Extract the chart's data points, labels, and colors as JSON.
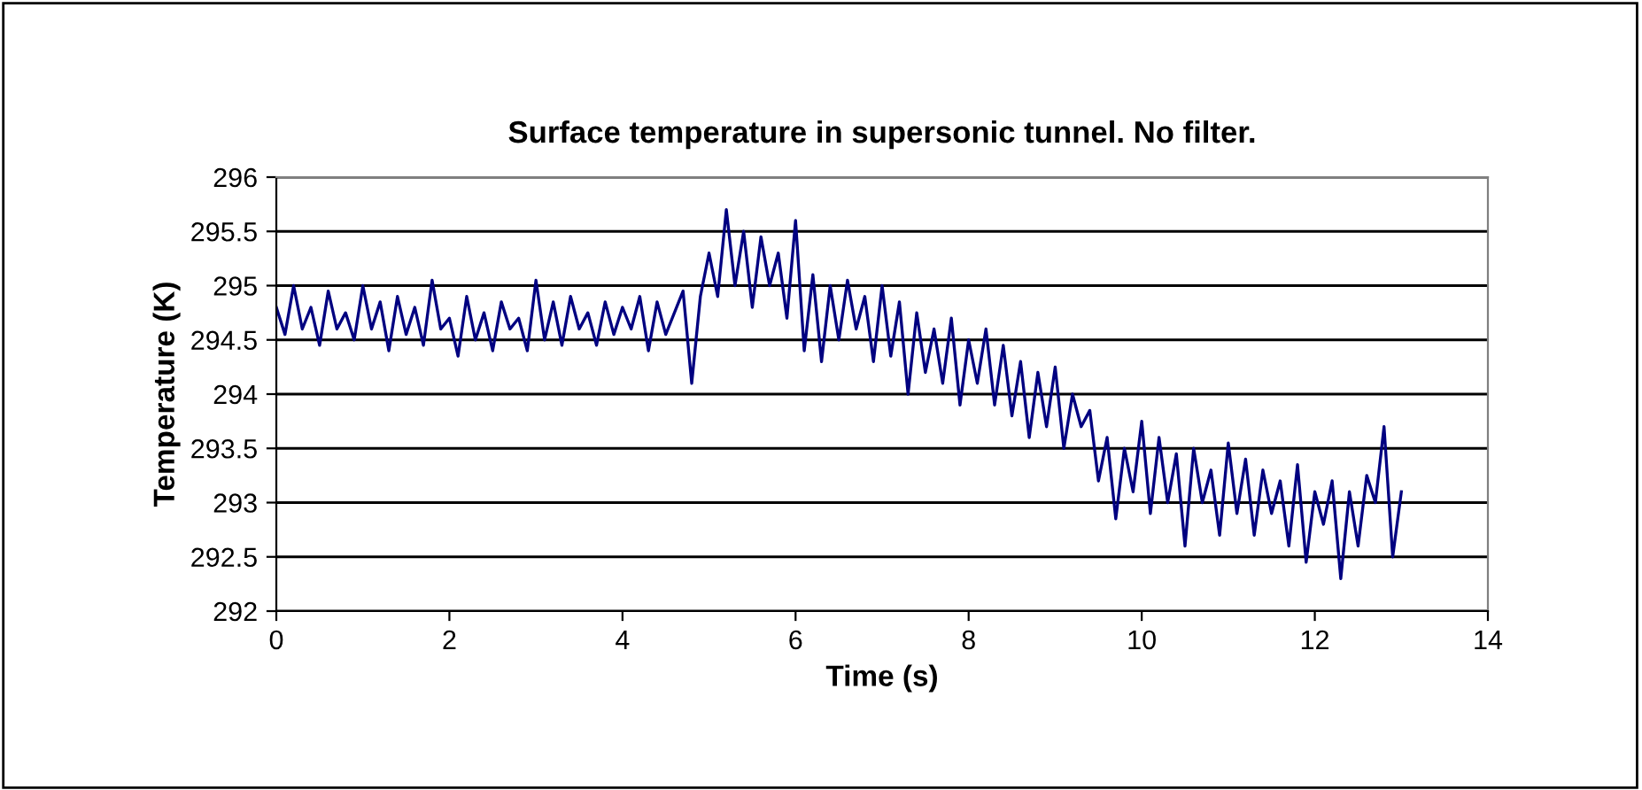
{
  "chart_data": {
    "type": "line",
    "title": "Surface temperature in supersonic tunnel. No filter.",
    "xlabel": "Time (s)",
    "ylabel": "Temperature (K)",
    "x": [
      0.0,
      0.1,
      0.2,
      0.3,
      0.4,
      0.5,
      0.6,
      0.7,
      0.8,
      0.9,
      1.0,
      1.1,
      1.2,
      1.3,
      1.4,
      1.5,
      1.6,
      1.7,
      1.8,
      1.9,
      2.0,
      2.1,
      2.2,
      2.3,
      2.4,
      2.5,
      2.6,
      2.7,
      2.8,
      2.9,
      3.0,
      3.1,
      3.2,
      3.3,
      3.4,
      3.5,
      3.6,
      3.7,
      3.8,
      3.9,
      4.0,
      4.1,
      4.2,
      4.3,
      4.4,
      4.5,
      4.6,
      4.7,
      4.8,
      4.9,
      5.0,
      5.1,
      5.2,
      5.3,
      5.4,
      5.5,
      5.6,
      5.7,
      5.8,
      5.9,
      6.0,
      6.1,
      6.2,
      6.3,
      6.4,
      6.5,
      6.6,
      6.7,
      6.8,
      6.9,
      7.0,
      7.1,
      7.2,
      7.3,
      7.4,
      7.5,
      7.6,
      7.7,
      7.8,
      7.9,
      8.0,
      8.1,
      8.2,
      8.3,
      8.4,
      8.5,
      8.6,
      8.7,
      8.8,
      8.9,
      9.0,
      9.1,
      9.2,
      9.3,
      9.4,
      9.5,
      9.6,
      9.7,
      9.8,
      9.9,
      10.0,
      10.1,
      10.2,
      10.3,
      10.4,
      10.5,
      10.6,
      10.7,
      10.8,
      10.9,
      11.0,
      11.1,
      11.2,
      11.3,
      11.4,
      11.5,
      11.6,
      11.7,
      11.8,
      11.9,
      12.0,
      12.1,
      12.2,
      12.3,
      12.4,
      12.5,
      12.6,
      12.7,
      12.8,
      12.9,
      13.0
    ],
    "series": [
      {
        "color": "#000080",
        "values": [
          294.8,
          294.55,
          295.0,
          294.6,
          294.8,
          294.45,
          294.95,
          294.6,
          294.75,
          294.5,
          295.0,
          294.6,
          294.85,
          294.4,
          294.9,
          294.55,
          294.8,
          294.45,
          295.05,
          294.6,
          294.7,
          294.35,
          294.9,
          294.5,
          294.75,
          294.4,
          294.85,
          294.6,
          294.7,
          294.4,
          295.05,
          294.5,
          294.85,
          294.45,
          294.9,
          294.6,
          294.75,
          294.45,
          294.85,
          294.55,
          294.8,
          294.6,
          294.9,
          294.4,
          294.85,
          294.55,
          294.75,
          294.95,
          294.1,
          294.9,
          295.3,
          294.9,
          295.7,
          295.0,
          295.5,
          294.8,
          295.45,
          295.0,
          295.3,
          294.7,
          295.6,
          294.4,
          295.1,
          294.3,
          295.0,
          294.5,
          295.05,
          294.6,
          294.9,
          294.3,
          295.0,
          294.35,
          294.85,
          294.0,
          294.75,
          294.2,
          294.6,
          294.1,
          294.7,
          293.9,
          294.5,
          294.1,
          294.6,
          293.9,
          294.45,
          293.8,
          294.3,
          293.6,
          294.2,
          293.7,
          294.25,
          293.5,
          294.0,
          293.7,
          293.85,
          293.2,
          293.6,
          292.85,
          293.5,
          293.1,
          293.75,
          292.9,
          293.6,
          293.0,
          293.45,
          292.6,
          293.5,
          293.0,
          293.3,
          292.7,
          293.55,
          292.9,
          293.4,
          292.7,
          293.3,
          292.9,
          293.2,
          292.6,
          293.35,
          292.45,
          293.1,
          292.8,
          293.2,
          292.3,
          293.1,
          292.6,
          293.25,
          293.0,
          293.7,
          292.5,
          293.1
        ]
      }
    ],
    "xlim": [
      0,
      14
    ],
    "xticks": [
      0,
      2,
      4,
      6,
      8,
      10,
      12,
      14
    ],
    "ylim": [
      292,
      296
    ],
    "yticks": [
      292,
      292.5,
      293,
      293.5,
      294,
      294.5,
      295,
      295.5,
      296
    ],
    "grid": "y",
    "legend": false,
    "marker": "none",
    "line_style": "solid"
  }
}
